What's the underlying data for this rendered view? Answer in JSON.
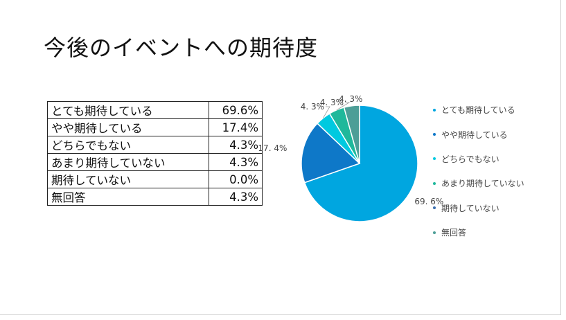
{
  "slide": {
    "title": "今後のイベントへの期待度"
  },
  "table": {
    "rows": [
      {
        "label": "とても期待している",
        "value": "69.6%"
      },
      {
        "label": "やや期待している",
        "value": "17.4%"
      },
      {
        "label": "どちらでもない",
        "value": "4.3%"
      },
      {
        "label": "あまり期待していない",
        "value": "4.3%"
      },
      {
        "label": "期待していない",
        "value": "0.0%"
      },
      {
        "label": "無回答",
        "value": "4.3%"
      }
    ]
  },
  "chart_data": {
    "type": "pie",
    "categories": [
      "とても期待している",
      "やや期待している",
      "どちらでもない",
      "あまり期待していない",
      "期待していない",
      "無回答"
    ],
    "values": [
      69.6,
      17.4,
      4.3,
      4.3,
      0.0,
      4.3
    ],
    "data_labels": [
      "69. 6%",
      "17. 4%",
      "4. 3%",
      "4. 3%",
      "",
      "4. 3%"
    ],
    "colors": [
      "#00A6E0",
      "#0E78C8",
      "#00C9E0",
      "#1FB89B",
      "#3B6FB0",
      "#4D9E97"
    ],
    "legend_position": "right"
  }
}
